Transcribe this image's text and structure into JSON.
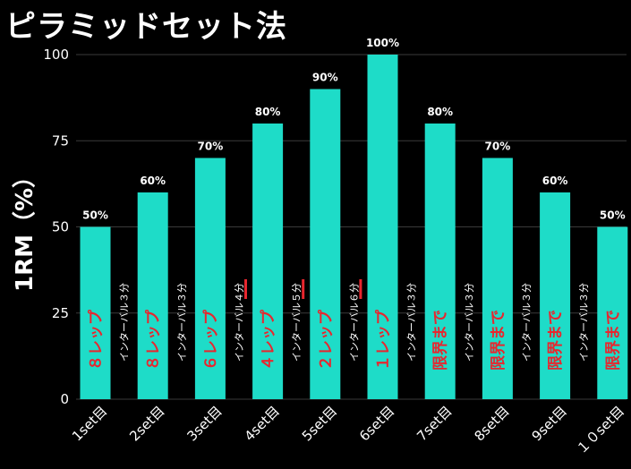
{
  "chart_data": {
    "type": "bar",
    "title": "ピラミッドセット法",
    "ylabel": "1RM（%）",
    "xlabel": "",
    "ylim": [
      0,
      100
    ],
    "yticks": [
      0,
      25,
      50,
      75,
      100
    ],
    "grid": true,
    "categories": [
      "1set目",
      "2set目",
      "3set目",
      "4set目",
      "5set目",
      "6set目",
      "7set目",
      "8set目",
      "9set目",
      "１０set目"
    ],
    "values": [
      50,
      60,
      70,
      80,
      90,
      100,
      80,
      70,
      60,
      50
    ],
    "data_labels": [
      "50%",
      "60%",
      "70%",
      "80%",
      "90%",
      "100%",
      "80%",
      "70%",
      "60%",
      "50%"
    ],
    "bar_annotations": [
      "８レップ",
      "８レップ",
      "６レップ",
      "４レップ",
      "２レップ",
      "１レップ",
      "限界まで",
      "限界まで",
      "限界まで",
      "限界まで"
    ],
    "interval_annotations": [
      "インターバル３分",
      "インターバル３分",
      "インターバル４分",
      "インターバル５分",
      "インターバル６分",
      "インターバル３分",
      "インターバル３分",
      "インターバル３分",
      "インターバル３分"
    ],
    "interval_marked": [
      false,
      false,
      true,
      true,
      true,
      false,
      false,
      false,
      false
    ],
    "colors": {
      "background": "#000000",
      "bar": "#1edcc8",
      "annotation": "#e8262e",
      "text": "#ffffff",
      "grid": "#3a3a3a",
      "marker": "#e8262e"
    }
  }
}
